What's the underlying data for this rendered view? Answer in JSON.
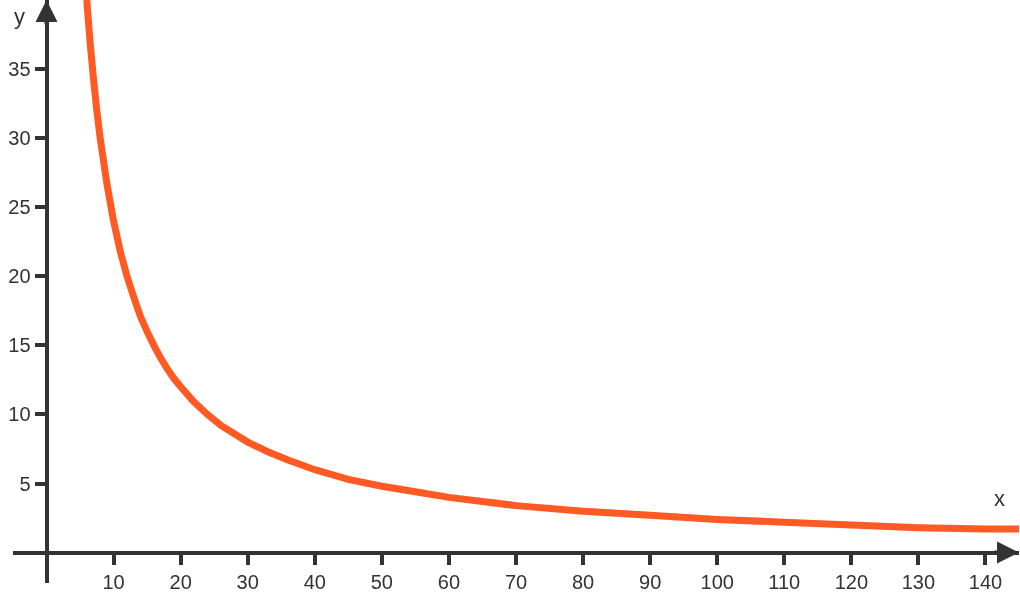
{
  "chart_data": {
    "type": "line",
    "xlabel": "x",
    "ylabel": "y",
    "x": [
      6,
      6.5,
      7,
      7.5,
      8,
      9,
      10,
      11,
      12,
      13,
      14,
      15,
      16,
      17,
      18,
      19,
      20,
      22,
      24,
      26,
      28,
      30,
      33,
      36,
      40,
      45,
      50,
      55,
      60,
      65,
      70,
      80,
      90,
      100,
      110,
      120,
      130,
      140,
      145
    ],
    "series": [
      {
        "color": "#ff5a24",
        "values": [
          40.0,
          36.9,
          34.3,
          32.0,
          30.0,
          26.7,
          24.0,
          21.8,
          20.0,
          18.5,
          17.1,
          16.0,
          15.0,
          14.1,
          13.3,
          12.6,
          12.0,
          10.9,
          10.0,
          9.2,
          8.6,
          8.0,
          7.3,
          6.7,
          6.0,
          5.3,
          4.8,
          4.4,
          4.0,
          3.7,
          3.4,
          3.0,
          2.7,
          2.4,
          2.2,
          2.0,
          1.8,
          1.7,
          1.7
        ]
      }
    ],
    "xlim": [
      -5,
      145
    ],
    "ylim": [
      -2.2,
      40
    ],
    "xticks": [
      10,
      20,
      30,
      40,
      50,
      60,
      70,
      80,
      90,
      100,
      110,
      120,
      130,
      140
    ],
    "yticks": [
      5,
      10,
      15,
      20,
      25,
      30,
      35
    ]
  }
}
